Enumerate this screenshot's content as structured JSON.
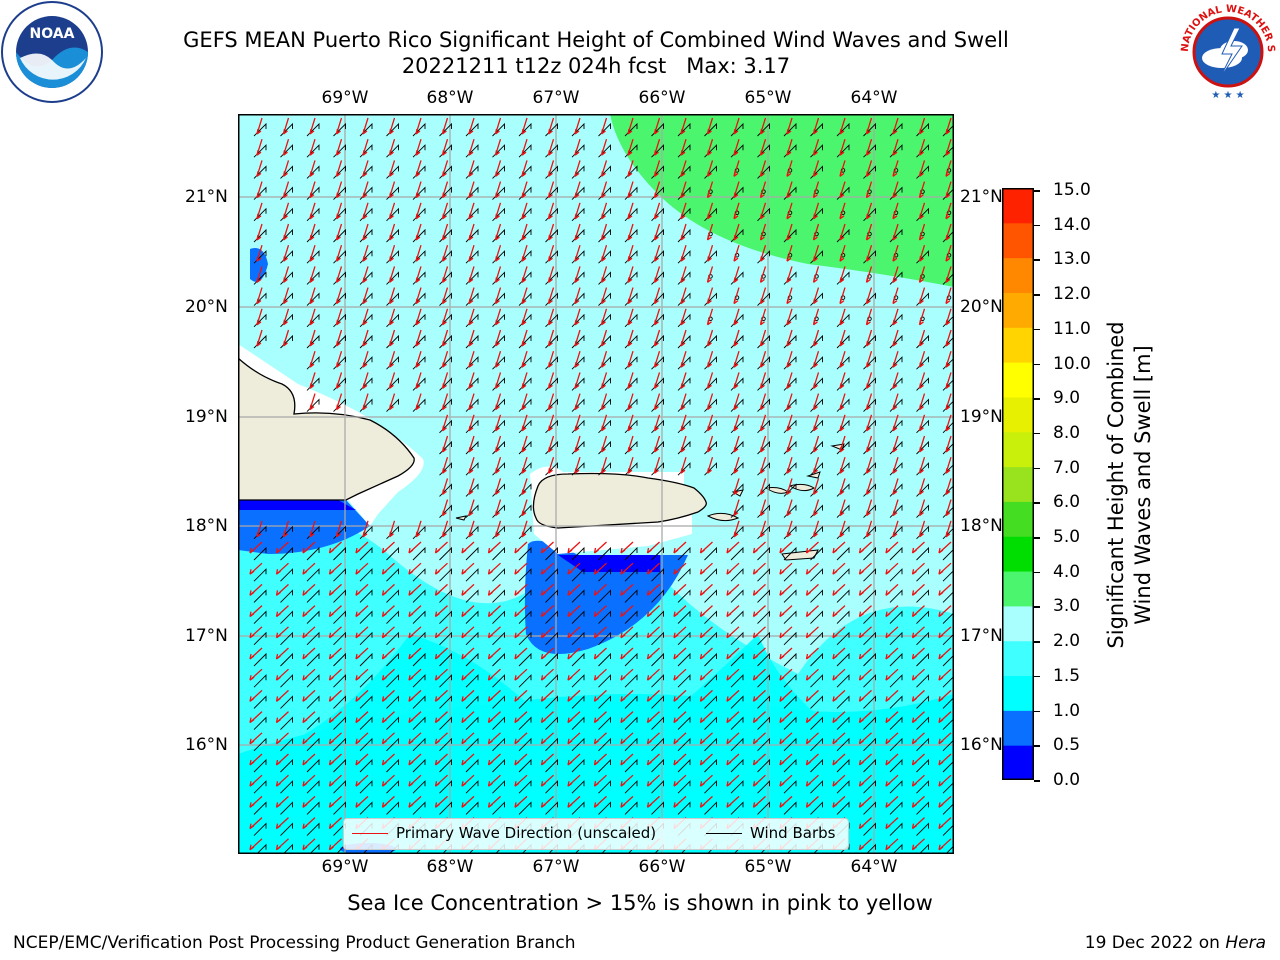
{
  "title": {
    "line1": "GEFS MEAN Puerto Rico Significant Height of Combined Wind Waves and Swell",
    "line2": "20221211 t12z 024h fcst   Max: 3.17"
  },
  "logos": {
    "left": "noaa-logo",
    "right": "national-weather-service-logo",
    "left_text": "NOAA",
    "right_ring_text": "NATIONAL WEATHER SERVICE"
  },
  "map": {
    "lon_labels": [
      "69°W",
      "68°W",
      "67°W",
      "66°W",
      "65°W",
      "64°W"
    ],
    "lat_labels": [
      "21°N",
      "20°N",
      "19°N",
      "18°N",
      "17°N",
      "16°N"
    ],
    "extent": {
      "lon_min": -69.99,
      "lon_max": -63.25,
      "lat_min": 15.0,
      "lat_max": 21.75
    },
    "grid": true,
    "land_color": "#eeecdb",
    "arrow_color": "#ee1111",
    "barb_color": "#000000"
  },
  "colorbar": {
    "label_line1": "Significant Height of Combined",
    "label_line2": "Wind Waves and Swell [m]",
    "ticks": [
      "15.0",
      "14.0",
      "13.0",
      "12.0",
      "11.0",
      "10.0",
      "9.0",
      "8.0",
      "7.0",
      "6.0",
      "5.0",
      "4.0",
      "3.0",
      "2.0",
      "1.5",
      "1.0",
      "0.5",
      "0.0"
    ],
    "colors": [
      "#0000ff",
      "#0a70ff",
      "#00ffff",
      "#40ffff",
      "#a8fffe",
      "#4cf56e",
      "#00dd00",
      "#44dd22",
      "#99e31e",
      "#c8f00a",
      "#e6f000",
      "#ffff00",
      "#ffd400",
      "#ffaa00",
      "#ff8800",
      "#ff5500",
      "#ff2200"
    ]
  },
  "legend": {
    "wave_direction": "Primary Wave Direction (unscaled)",
    "wind_barbs": "Wind Barbs"
  },
  "footer": {
    "sea_ice": "Sea Ice Concentration > 15% is shown in pink to yellow",
    "left": "NCEP/EMC/Verification Post Processing Product Generation Branch",
    "date": "19 Dec 2022 on ",
    "machine": "Hera"
  }
}
